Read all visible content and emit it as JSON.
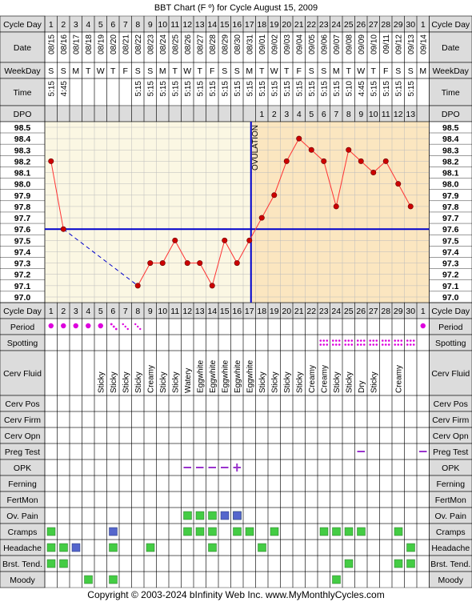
{
  "title": "BBT Chart (F º) for Cycle August 15, 2009",
  "footer": "Copyright © 2003-2024 bInfinity Web Inc.    www.MyMonthlyCycles.com",
  "colors": {
    "temp_line": "#ff3333",
    "temp_marker": "#cc0000",
    "coverline": "#0000cc",
    "ovulation_line": "#0000cc",
    "pre_ov_bg": "#fbf7e3",
    "post_ov_bg": "#fbe6c0",
    "header_bg": "#dcdcdc",
    "period_dot": "#dd00dd",
    "spotting_dot": "#dd00dd",
    "green_box": "#44cc44",
    "blue_box": "#5566cc",
    "opk_line": "#9933cc"
  },
  "row_labels": {
    "cycle_day": "Cycle Day",
    "date": "Date",
    "weekday": "WeekDay",
    "time": "Time",
    "dpo": "DPO",
    "period": "Period",
    "spotting": "Spotting",
    "cerv_fluid": "Cerv Fluid",
    "cerv_pos": "Cerv Pos",
    "cerv_firm": "Cerv Firm",
    "cerv_opn": "Cerv Opn",
    "preg_test": "Preg Test",
    "opk": "OPK",
    "ferning": "Ferning",
    "fertmon": "FertMon",
    "ov_pain": "Ov. Pain",
    "cramps": "Cramps",
    "headache": "Headache",
    "brst_tend": "Brst. Tend.",
    "moody": "Moody"
  },
  "ovulation_label": "OVULATION",
  "cycle_days": [
    "1",
    "2",
    "3",
    "4",
    "5",
    "6",
    "7",
    "8",
    "9",
    "10",
    "11",
    "12",
    "13",
    "14",
    "15",
    "16",
    "17",
    "18",
    "19",
    "20",
    "21",
    "22",
    "23",
    "24",
    "25",
    "26",
    "27",
    "28",
    "29",
    "30",
    "1"
  ],
  "dates": [
    "08/15",
    "08/16",
    "08/17",
    "08/18",
    "08/19",
    "08/20",
    "08/21",
    "08/22",
    "08/23",
    "08/24",
    "08/25",
    "08/26",
    "08/27",
    "08/28",
    "08/29",
    "08/30",
    "08/31",
    "09/01",
    "09/02",
    "09/03",
    "09/04",
    "09/05",
    "09/06",
    "09/07",
    "09/08",
    "09/09",
    "09/10",
    "09/11",
    "09/12",
    "09/13",
    "09/14"
  ],
  "weekdays": [
    "S",
    "S",
    "M",
    "T",
    "W",
    "T",
    "F",
    "S",
    "S",
    "M",
    "T",
    "W",
    "T",
    "F",
    "S",
    "S",
    "M",
    "T",
    "W",
    "T",
    "F",
    "S",
    "S",
    "M",
    "T",
    "W",
    "T",
    "F",
    "S",
    "S",
    "M"
  ],
  "times": [
    "5:15",
    "4:45",
    "",
    "",
    "",
    "",
    "",
    "5:15",
    "5:15",
    "5:15",
    "5:15",
    "5:15",
    "5:15",
    "5:15",
    "5:15",
    "5:15",
    "5:15",
    "5:15",
    "5:15",
    "5:15",
    "5:15",
    "5:15",
    "5:15",
    "5:15",
    "5:10",
    "4:45",
    "5:15",
    "5:15",
    "5:15",
    "5:15",
    ""
  ],
  "dpo": [
    "",
    "",
    "",
    "",
    "",
    "",
    "",
    "",
    "",
    "",
    "",
    "",
    "",
    "",
    "",
    "",
    "",
    "1",
    "2",
    "3",
    "4",
    "5",
    "6",
    "7",
    "8",
    "9",
    "10",
    "11",
    "12",
    "13",
    ""
  ],
  "cerv_fluid": [
    "",
    "",
    "",
    "",
    "Sticky",
    "Sticky",
    "Sticky",
    "Sticky",
    "Creamy",
    "Sticky",
    "Sticky",
    "Watery",
    "Eggwhite",
    "Eggwhite",
    "Eggwhite",
    "Eggwhite",
    "Eggwhite",
    "Sticky",
    "Sticky",
    "Sticky",
    "Sticky",
    "Creamy",
    "Creamy",
    "Sticky",
    "Sticky",
    "Dry",
    "Sticky",
    "",
    "Creamy",
    "",
    ""
  ],
  "period": [
    "heavy",
    "heavy",
    "heavy",
    "heavy",
    "heavy",
    "light",
    "spot",
    "spot",
    "",
    "",
    "",
    "",
    "",
    "",
    "",
    "",
    "",
    "",
    "",
    "",
    "",
    "",
    "",
    "",
    "",
    "",
    "",
    "",
    "",
    "",
    "heavy"
  ],
  "spotting_days": [
    23,
    24,
    25,
    26,
    27,
    28,
    29,
    30
  ],
  "preg_test_marks": [
    26,
    31
  ],
  "opk": {
    "negative_days": [
      12,
      13,
      14,
      15,
      16
    ],
    "positive_day": 16
  },
  "symptoms": {
    "ov_pain": {
      "green": [
        12,
        13,
        14,
        16
      ],
      "blue": [
        15,
        16
      ]
    },
    "cramps": {
      "green": [
        1,
        12,
        13,
        14,
        16,
        17,
        19,
        23,
        24,
        25,
        26,
        29
      ],
      "blue": [
        6
      ]
    },
    "headache": {
      "green": [
        1,
        2,
        6,
        9,
        14,
        18,
        30
      ],
      "blue": [
        3
      ]
    },
    "brst_tend": {
      "green": [
        1,
        2,
        25,
        29,
        30
      ],
      "blue": []
    },
    "moody": {
      "green": [
        4,
        6,
        24
      ],
      "blue": []
    }
  },
  "chart_data": {
    "type": "line",
    "title": "BBT Chart (F º) for Cycle August 15, 2009",
    "xlabel": "Cycle Day",
    "ylabel": "",
    "x": [
      1,
      2,
      8,
      9,
      10,
      11,
      12,
      13,
      14,
      15,
      16,
      17,
      18,
      19,
      20,
      21,
      22,
      23,
      24,
      25,
      26,
      27,
      28,
      29,
      30
    ],
    "y": [
      98.2,
      97.6,
      97.1,
      97.3,
      97.3,
      97.5,
      97.3,
      97.3,
      97.1,
      97.5,
      97.3,
      97.5,
      97.7,
      97.9,
      98.2,
      98.4,
      98.3,
      98.2,
      97.8,
      98.3,
      98.2,
      98.1,
      98.2,
      98.0,
      97.8
    ],
    "ylim": [
      97.0,
      98.5
    ],
    "y_ticks": [
      "98.5",
      "98.4",
      "98.3",
      "98.2",
      "98.1",
      "98.0",
      "97.9",
      "97.8",
      "97.7",
      "97.6",
      "97.5",
      "97.4",
      "97.3",
      "97.2",
      "97.1",
      "97.0"
    ],
    "coverline": 97.6,
    "ovulation_day": 17,
    "gap": {
      "from_day": 2,
      "to_day": 8
    },
    "grid": true
  }
}
